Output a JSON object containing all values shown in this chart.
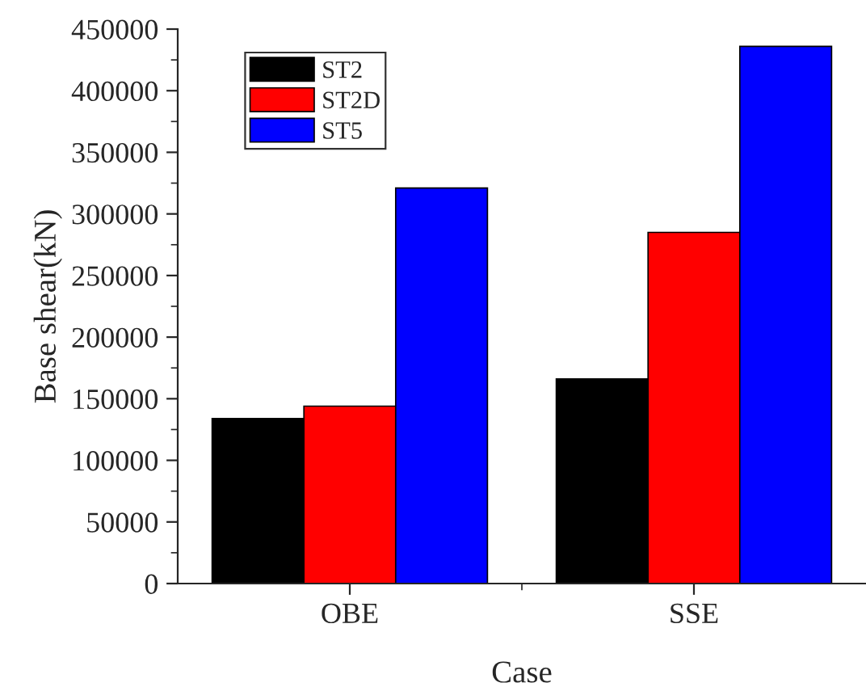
{
  "chart_data": {
    "type": "bar",
    "xlabel": "Case",
    "ylabel": "Base shear(kN)",
    "categories": [
      "OBE",
      "SSE"
    ],
    "series": [
      {
        "name": "ST2",
        "color": "#000000",
        "values": [
          134000,
          166000
        ]
      },
      {
        "name": "ST2D",
        "color": "#ff0000",
        "values": [
          144000,
          285000
        ]
      },
      {
        "name": "ST5",
        "color": "#0000ff",
        "values": [
          321000,
          436000
        ]
      }
    ],
    "ylim": [
      0,
      450000
    ],
    "yticks": [
      0,
      50000,
      100000,
      150000,
      200000,
      250000,
      300000,
      350000,
      400000,
      450000
    ],
    "legend": "top left",
    "grid": false
  }
}
